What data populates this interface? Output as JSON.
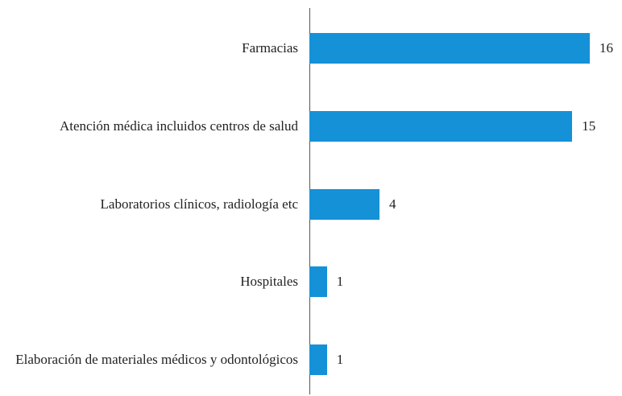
{
  "chart_data": {
    "type": "hbar",
    "categories": [
      "Farmacias",
      "Atención médica incluidos centros de salud",
      "Laboratorios clínicos, radiología etc",
      "Hospitales",
      "Elaboración de materiales médicos y odontológicos"
    ],
    "values": [
      16,
      15,
      4,
      1,
      1
    ],
    "color": "#1591d7"
  }
}
